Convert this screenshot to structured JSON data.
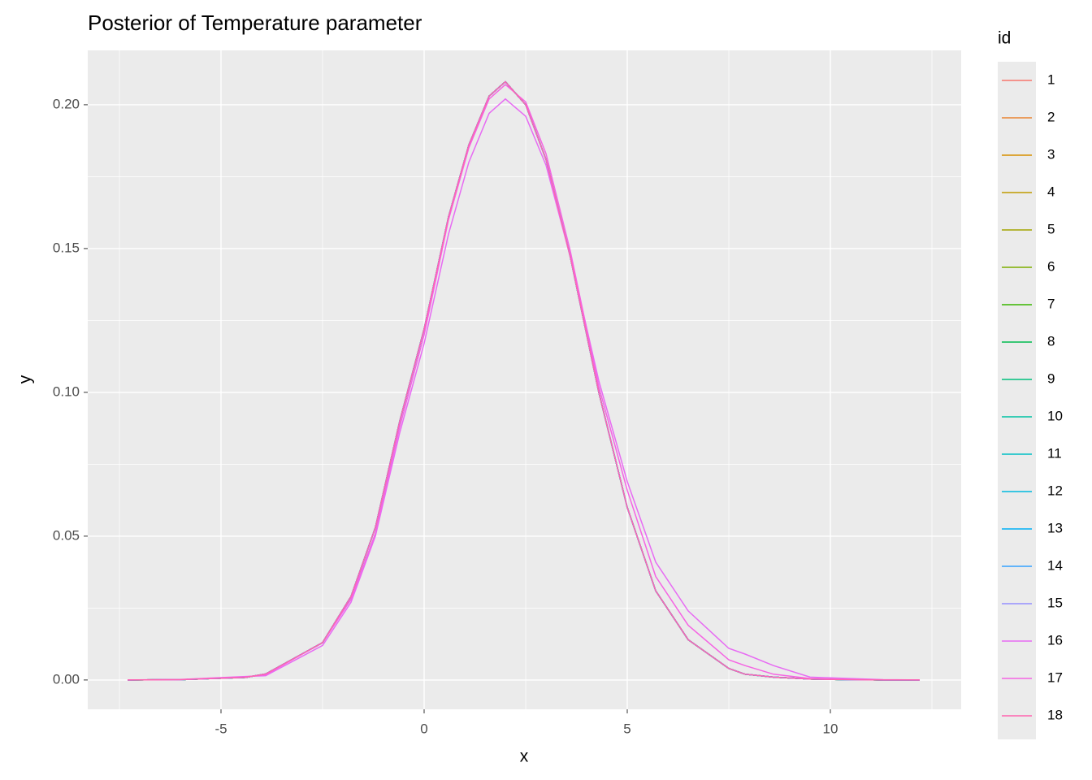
{
  "chart_data": {
    "type": "line",
    "title": "Posterior of Temperature parameter",
    "x_label": "x",
    "y_label": "y",
    "legend_title": "id",
    "legend_position": "right",
    "grid": true,
    "xlim": [
      -8.28,
      13.22
    ],
    "ylim": [
      -0.0102,
      0.2189
    ],
    "xticks": [
      -5,
      0,
      5,
      10
    ],
    "yticks": [
      {
        "value": 0,
        "label": "0.00"
      },
      {
        "value": 0.05,
        "label": "0.05"
      },
      {
        "value": 0.1,
        "label": "0.10"
      },
      {
        "value": 0.15,
        "label": "0.15"
      },
      {
        "value": 0.2,
        "label": "0.20"
      }
    ],
    "x": [
      -7.3,
      -6,
      -4.4,
      -3.9,
      -2.5,
      -1.8,
      -1.2,
      -0.6,
      0,
      0.6,
      1.1,
      1.6,
      2,
      2.5,
      3,
      3.6,
      4.3,
      5,
      5.7,
      6.5,
      7.5,
      7.9,
      8.6,
      9.5,
      10.5,
      11.3,
      12.2
    ],
    "series": [
      {
        "name": "1",
        "color": "#F8766D",
        "values": [
          0,
          0.0001,
          0.0009,
          0.0021,
          0.013,
          0.029,
          0.053,
          0.09,
          0.122,
          0.161,
          0.186,
          0.203,
          0.208,
          0.2,
          0.181,
          0.147,
          0.1,
          0.06,
          0.031,
          0.014,
          0.004,
          0.002,
          0.001,
          0.0003,
          0.0001,
          0,
          0
        ]
      },
      {
        "name": "2",
        "color": "#EA8331",
        "values": [
          0,
          0.0001,
          0.0009,
          0.0021,
          0.013,
          0.029,
          0.053,
          0.09,
          0.122,
          0.161,
          0.186,
          0.203,
          0.208,
          0.2,
          0.181,
          0.147,
          0.1,
          0.06,
          0.031,
          0.014,
          0.004,
          0.002,
          0.001,
          0.0003,
          0.0001,
          0,
          0
        ]
      },
      {
        "name": "3",
        "color": "#D89000",
        "values": [
          0,
          0.0001,
          0.0009,
          0.0021,
          0.013,
          0.029,
          0.053,
          0.09,
          0.122,
          0.161,
          0.186,
          0.203,
          0.208,
          0.2,
          0.181,
          0.147,
          0.1,
          0.06,
          0.031,
          0.014,
          0.004,
          0.002,
          0.001,
          0.0003,
          0.0001,
          0,
          0
        ]
      },
      {
        "name": "4",
        "color": "#C09B00",
        "values": [
          0,
          0.0001,
          0.0009,
          0.0021,
          0.013,
          0.029,
          0.053,
          0.09,
          0.122,
          0.161,
          0.186,
          0.203,
          0.208,
          0.2,
          0.181,
          0.147,
          0.1,
          0.06,
          0.031,
          0.014,
          0.004,
          0.002,
          0.001,
          0.0003,
          0.0001,
          0,
          0
        ]
      },
      {
        "name": "5",
        "color": "#A3A500",
        "values": [
          0,
          0.0001,
          0.0009,
          0.0021,
          0.013,
          0.029,
          0.053,
          0.09,
          0.122,
          0.161,
          0.186,
          0.203,
          0.208,
          0.2,
          0.181,
          0.147,
          0.1,
          0.06,
          0.031,
          0.014,
          0.004,
          0.002,
          0.001,
          0.0003,
          0.0001,
          0,
          0
        ]
      },
      {
        "name": "6",
        "color": "#7CAE00",
        "values": [
          0,
          0.0001,
          0.0009,
          0.0021,
          0.013,
          0.029,
          0.053,
          0.09,
          0.122,
          0.161,
          0.186,
          0.203,
          0.208,
          0.2,
          0.181,
          0.147,
          0.1,
          0.06,
          0.031,
          0.014,
          0.004,
          0.002,
          0.001,
          0.0003,
          0.0001,
          0,
          0
        ]
      },
      {
        "name": "7",
        "color": "#39B600",
        "values": [
          0,
          0.0001,
          0.0009,
          0.0021,
          0.013,
          0.029,
          0.053,
          0.09,
          0.122,
          0.161,
          0.186,
          0.203,
          0.208,
          0.2,
          0.181,
          0.147,
          0.1,
          0.06,
          0.031,
          0.014,
          0.004,
          0.002,
          0.001,
          0.0003,
          0.0001,
          0,
          0
        ]
      },
      {
        "name": "8",
        "color": "#00BB4E",
        "values": [
          0,
          0.0001,
          0.0009,
          0.0021,
          0.013,
          0.029,
          0.053,
          0.09,
          0.122,
          0.161,
          0.186,
          0.203,
          0.208,
          0.2,
          0.181,
          0.147,
          0.1,
          0.06,
          0.031,
          0.014,
          0.004,
          0.002,
          0.001,
          0.0003,
          0.0001,
          0,
          0
        ]
      },
      {
        "name": "9",
        "color": "#00BF7D",
        "values": [
          0,
          0.0001,
          0.0009,
          0.0021,
          0.013,
          0.029,
          0.053,
          0.09,
          0.122,
          0.161,
          0.186,
          0.203,
          0.208,
          0.2,
          0.181,
          0.147,
          0.1,
          0.06,
          0.031,
          0.014,
          0.004,
          0.002,
          0.001,
          0.0003,
          0.0001,
          0,
          0
        ]
      },
      {
        "name": "10",
        "color": "#00C1A3",
        "values": [
          0,
          0.0001,
          0.0009,
          0.0021,
          0.013,
          0.029,
          0.053,
          0.09,
          0.122,
          0.161,
          0.186,
          0.203,
          0.208,
          0.2,
          0.181,
          0.147,
          0.1,
          0.06,
          0.031,
          0.014,
          0.004,
          0.002,
          0.001,
          0.0003,
          0.0001,
          0,
          0
        ]
      },
      {
        "name": "11",
        "color": "#00BFC4",
        "values": [
          0,
          0.0001,
          0.0009,
          0.0021,
          0.013,
          0.029,
          0.053,
          0.09,
          0.122,
          0.161,
          0.186,
          0.203,
          0.208,
          0.2,
          0.181,
          0.147,
          0.1,
          0.06,
          0.031,
          0.014,
          0.004,
          0.002,
          0.001,
          0.0003,
          0.0001,
          0,
          0
        ]
      },
      {
        "name": "12",
        "color": "#00BAE0",
        "values": [
          0,
          0.0001,
          0.0009,
          0.0021,
          0.013,
          0.029,
          0.053,
          0.09,
          0.122,
          0.161,
          0.186,
          0.203,
          0.208,
          0.2,
          0.181,
          0.147,
          0.1,
          0.06,
          0.031,
          0.014,
          0.004,
          0.002,
          0.001,
          0.0003,
          0.0001,
          0,
          0
        ]
      },
      {
        "name": "13",
        "color": "#00B0F6",
        "values": [
          0,
          0.0001,
          0.0009,
          0.0021,
          0.013,
          0.029,
          0.053,
          0.09,
          0.122,
          0.161,
          0.186,
          0.203,
          0.208,
          0.2,
          0.181,
          0.147,
          0.1,
          0.06,
          0.031,
          0.014,
          0.004,
          0.002,
          0.001,
          0.0003,
          0.0001,
          0,
          0
        ]
      },
      {
        "name": "14",
        "color": "#35A2FF",
        "values": [
          0,
          0.0001,
          0.0009,
          0.0021,
          0.013,
          0.029,
          0.053,
          0.09,
          0.122,
          0.161,
          0.186,
          0.203,
          0.208,
          0.2,
          0.181,
          0.147,
          0.1,
          0.06,
          0.031,
          0.014,
          0.004,
          0.002,
          0.001,
          0.0003,
          0.0001,
          0,
          0
        ]
      },
      {
        "name": "15",
        "color": "#9590FF",
        "values": [
          0,
          0.0001,
          0.0009,
          0.0021,
          0.013,
          0.029,
          0.053,
          0.09,
          0.122,
          0.161,
          0.186,
          0.203,
          0.208,
          0.2,
          0.181,
          0.147,
          0.1,
          0.06,
          0.031,
          0.014,
          0.004,
          0.002,
          0.001,
          0.0003,
          0.0001,
          0,
          0
        ]
      },
      {
        "name": "16",
        "color": "#E76BF3",
        "values": [
          0,
          0.0002,
          0.0012,
          0.0015,
          0.012,
          0.027,
          0.05,
          0.086,
          0.117,
          0.155,
          0.18,
          0.197,
          0.202,
          0.196,
          0.179,
          0.147,
          0.104,
          0.069,
          0.041,
          0.024,
          0.011,
          0.009,
          0.005,
          0.001,
          0.0005,
          0.0001,
          0
        ]
      },
      {
        "name": "17",
        "color": "#F564E3",
        "values": [
          0,
          0.0001,
          0.0011,
          0.0018,
          0.013,
          0.028,
          0.051,
          0.088,
          0.12,
          0.16,
          0.185,
          0.202,
          0.207,
          0.201,
          0.183,
          0.149,
          0.102,
          0.066,
          0.036,
          0.019,
          0.007,
          0.005,
          0.002,
          0.0005,
          0.0002,
          0,
          0
        ]
      },
      {
        "name": "18",
        "color": "#FF64B0",
        "values": [
          0,
          0.0001,
          0.0009,
          0.0021,
          0.013,
          0.029,
          0.053,
          0.09,
          0.122,
          0.161,
          0.186,
          0.203,
          0.208,
          0.2,
          0.181,
          0.147,
          0.1,
          0.06,
          0.031,
          0.014,
          0.004,
          0.002,
          0.001,
          0.0003,
          0.0001,
          0,
          0
        ]
      }
    ]
  }
}
